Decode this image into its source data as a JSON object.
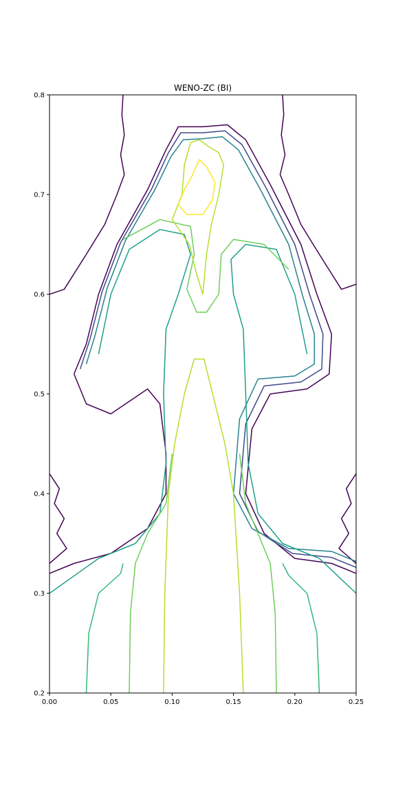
{
  "chart_data": {
    "type": "contour",
    "title": "WENO-ZC (BI)",
    "xlabel": "",
    "ylabel": "",
    "xlim": [
      0.0,
      0.25
    ],
    "ylim": [
      0.2,
      0.8
    ],
    "x_ticks": [
      0.0,
      0.05,
      0.1,
      0.15,
      0.2,
      0.25
    ],
    "x_tick_labels": [
      "0.00",
      "0.05",
      "0.10",
      "0.15",
      "0.20",
      "0.25"
    ],
    "y_ticks": [
      0.2,
      0.3,
      0.4,
      0.5,
      0.6,
      0.7,
      0.8
    ],
    "y_tick_labels": [
      "0.2",
      "0.3",
      "0.4",
      "0.5",
      "0.6",
      "0.7",
      "0.8"
    ],
    "grid": false,
    "legend": "none",
    "colormap": "viridis",
    "levels": [
      {
        "color": "#440154"
      },
      {
        "color": "#482878"
      },
      {
        "color": "#3e4989"
      },
      {
        "color": "#31688e"
      },
      {
        "color": "#26828e"
      },
      {
        "color": "#1f9e89"
      },
      {
        "color": "#35b779"
      },
      {
        "color": "#6ece58"
      },
      {
        "color": "#b5de2b"
      },
      {
        "color": "#fde725"
      }
    ],
    "contours": [
      {
        "level": 0,
        "points": [
          [
            0.06,
            0.8
          ],
          [
            0.059,
            0.78
          ],
          [
            0.061,
            0.76
          ],
          [
            0.058,
            0.74
          ],
          [
            0.061,
            0.72
          ],
          [
            0.055,
            0.7
          ],
          [
            0.045,
            0.67
          ],
          [
            0.03,
            0.64
          ],
          [
            0.012,
            0.605
          ],
          [
            0.0,
            0.6
          ]
        ]
      },
      {
        "level": 0,
        "points": [
          [
            0.19,
            0.8
          ],
          [
            0.191,
            0.78
          ],
          [
            0.189,
            0.76
          ],
          [
            0.192,
            0.74
          ],
          [
            0.188,
            0.72
          ],
          [
            0.195,
            0.7
          ],
          [
            0.205,
            0.67
          ],
          [
            0.22,
            0.64
          ],
          [
            0.238,
            0.605
          ],
          [
            0.25,
            0.61
          ]
        ]
      },
      {
        "level": 0,
        "points": [
          [
            0.0,
            0.42
          ],
          [
            0.008,
            0.405
          ],
          [
            0.004,
            0.39
          ],
          [
            0.012,
            0.375
          ],
          [
            0.006,
            0.36
          ],
          [
            0.014,
            0.345
          ],
          [
            0.0,
            0.33
          ]
        ]
      },
      {
        "level": 0,
        "points": [
          [
            0.25,
            0.42
          ],
          [
            0.242,
            0.405
          ],
          [
            0.246,
            0.39
          ],
          [
            0.238,
            0.375
          ],
          [
            0.244,
            0.36
          ],
          [
            0.236,
            0.345
          ],
          [
            0.25,
            0.33
          ]
        ]
      },
      {
        "level": 0,
        "points": [
          [
            0.02,
            0.52
          ],
          [
            0.03,
            0.55
          ],
          [
            0.04,
            0.6
          ],
          [
            0.055,
            0.65
          ],
          [
            0.08,
            0.705
          ],
          [
            0.095,
            0.745
          ],
          [
            0.105,
            0.768
          ],
          [
            0.125,
            0.768
          ],
          [
            0.145,
            0.77
          ],
          [
            0.16,
            0.755
          ],
          [
            0.18,
            0.71
          ],
          [
            0.205,
            0.65
          ],
          [
            0.218,
            0.6
          ],
          [
            0.23,
            0.56
          ],
          [
            0.228,
            0.52
          ],
          [
            0.21,
            0.505
          ],
          [
            0.18,
            0.5
          ],
          [
            0.165,
            0.465
          ],
          [
            0.16,
            0.4
          ],
          [
            0.175,
            0.36
          ],
          [
            0.2,
            0.335
          ],
          [
            0.23,
            0.33
          ],
          [
            0.25,
            0.32
          ]
        ]
      },
      {
        "level": 0,
        "points": [
          [
            0.02,
            0.52
          ],
          [
            0.03,
            0.49
          ],
          [
            0.05,
            0.48
          ],
          [
            0.08,
            0.505
          ],
          [
            0.09,
            0.49
          ],
          [
            0.095,
            0.44
          ],
          [
            0.095,
            0.4
          ],
          [
            0.08,
            0.365
          ],
          [
            0.05,
            0.34
          ],
          [
            0.02,
            0.33
          ],
          [
            0.0,
            0.32
          ]
        ]
      },
      {
        "level": 2,
        "points": [
          [
            0.025,
            0.525
          ],
          [
            0.033,
            0.555
          ],
          [
            0.043,
            0.603
          ],
          [
            0.058,
            0.652
          ],
          [
            0.083,
            0.705
          ],
          [
            0.097,
            0.742
          ],
          [
            0.107,
            0.762
          ],
          [
            0.125,
            0.762
          ],
          [
            0.143,
            0.764
          ],
          [
            0.157,
            0.75
          ],
          [
            0.176,
            0.708
          ],
          [
            0.2,
            0.65
          ],
          [
            0.212,
            0.6
          ],
          [
            0.223,
            0.56
          ],
          [
            0.222,
            0.525
          ],
          [
            0.205,
            0.512
          ],
          [
            0.175,
            0.508
          ],
          [
            0.16,
            0.47
          ],
          [
            0.155,
            0.4
          ],
          [
            0.17,
            0.362
          ],
          [
            0.198,
            0.34
          ],
          [
            0.23,
            0.336
          ],
          [
            0.25,
            0.326
          ]
        ]
      },
      {
        "level": 4,
        "points": [
          [
            0.03,
            0.53
          ],
          [
            0.037,
            0.558
          ],
          [
            0.047,
            0.606
          ],
          [
            0.062,
            0.654
          ],
          [
            0.086,
            0.705
          ],
          [
            0.099,
            0.738
          ],
          [
            0.109,
            0.755
          ],
          [
            0.125,
            0.756
          ],
          [
            0.141,
            0.758
          ],
          [
            0.154,
            0.745
          ],
          [
            0.172,
            0.705
          ],
          [
            0.195,
            0.65
          ],
          [
            0.206,
            0.6
          ],
          [
            0.216,
            0.56
          ],
          [
            0.216,
            0.53
          ],
          [
            0.2,
            0.518
          ],
          [
            0.17,
            0.515
          ],
          [
            0.155,
            0.475
          ],
          [
            0.15,
            0.4
          ],
          [
            0.165,
            0.365
          ],
          [
            0.195,
            0.345
          ],
          [
            0.23,
            0.342
          ],
          [
            0.25,
            0.332
          ]
        ]
      },
      {
        "level": 5,
        "points": [
          [
            0.04,
            0.54
          ],
          [
            0.05,
            0.6
          ],
          [
            0.065,
            0.645
          ],
          [
            0.09,
            0.665
          ],
          [
            0.11,
            0.66
          ],
          [
            0.115,
            0.64
          ],
          [
            0.105,
            0.6
          ],
          [
            0.095,
            0.565
          ],
          [
            0.093,
            0.5
          ],
          [
            0.095,
            0.43
          ],
          [
            0.09,
            0.38
          ],
          [
            0.07,
            0.35
          ],
          [
            0.04,
            0.335
          ],
          [
            0.0,
            0.3
          ]
        ]
      },
      {
        "level": 5,
        "points": [
          [
            0.21,
            0.54
          ],
          [
            0.2,
            0.6
          ],
          [
            0.185,
            0.645
          ],
          [
            0.16,
            0.65
          ],
          [
            0.148,
            0.635
          ],
          [
            0.15,
            0.6
          ],
          [
            0.158,
            0.565
          ],
          [
            0.16,
            0.5
          ],
          [
            0.162,
            0.43
          ],
          [
            0.17,
            0.38
          ],
          [
            0.19,
            0.35
          ],
          [
            0.22,
            0.335
          ],
          [
            0.25,
            0.3
          ]
        ]
      },
      {
        "level": 6,
        "points": [
          [
            0.03,
            0.2
          ],
          [
            0.032,
            0.26
          ],
          [
            0.04,
            0.3
          ],
          [
            0.058,
            0.32
          ],
          [
            0.06,
            0.33
          ]
        ]
      },
      {
        "level": 6,
        "points": [
          [
            0.22,
            0.2
          ],
          [
            0.218,
            0.26
          ],
          [
            0.21,
            0.3
          ],
          [
            0.195,
            0.318
          ],
          [
            0.19,
            0.33
          ]
        ]
      },
      {
        "level": 7,
        "points": [
          [
            0.065,
            0.2
          ],
          [
            0.066,
            0.28
          ],
          [
            0.07,
            0.33
          ],
          [
            0.08,
            0.36
          ],
          [
            0.095,
            0.39
          ],
          [
            0.1,
            0.44
          ]
        ]
      },
      {
        "level": 7,
        "points": [
          [
            0.185,
            0.2
          ],
          [
            0.184,
            0.28
          ],
          [
            0.18,
            0.33
          ],
          [
            0.17,
            0.36
          ],
          [
            0.16,
            0.39
          ],
          [
            0.155,
            0.44
          ]
        ]
      },
      {
        "level": 7,
        "points": [
          [
            0.06,
            0.655
          ],
          [
            0.09,
            0.675
          ],
          [
            0.115,
            0.668
          ],
          [
            0.118,
            0.64
          ],
          [
            0.112,
            0.605
          ],
          [
            0.12,
            0.582
          ],
          [
            0.128,
            0.582
          ],
          [
            0.138,
            0.6
          ],
          [
            0.14,
            0.64
          ],
          [
            0.15,
            0.655
          ],
          [
            0.175,
            0.65
          ],
          [
            0.195,
            0.625
          ]
        ]
      },
      {
        "level": 8,
        "points": [
          [
            0.093,
            0.2
          ],
          [
            0.094,
            0.3
          ],
          [
            0.097,
            0.4
          ],
          [
            0.102,
            0.45
          ],
          [
            0.11,
            0.5
          ],
          [
            0.118,
            0.535
          ],
          [
            0.126,
            0.535
          ],
          [
            0.133,
            0.5
          ],
          [
            0.143,
            0.45
          ],
          [
            0.15,
            0.4
          ],
          [
            0.155,
            0.3
          ],
          [
            0.158,
            0.2
          ]
        ]
      },
      {
        "level": 8,
        "points": [
          [
            0.1,
            0.675
          ],
          [
            0.108,
            0.7
          ],
          [
            0.11,
            0.73
          ],
          [
            0.115,
            0.752
          ],
          [
            0.122,
            0.755
          ],
          [
            0.13,
            0.748
          ],
          [
            0.138,
            0.742
          ],
          [
            0.142,
            0.73
          ],
          [
            0.138,
            0.7
          ],
          [
            0.132,
            0.67
          ],
          [
            0.128,
            0.64
          ],
          [
            0.125,
            0.6
          ],
          [
            0.12,
            0.62
          ],
          [
            0.114,
            0.65
          ],
          [
            0.1,
            0.675
          ]
        ]
      },
      {
        "level": 9,
        "points": [
          [
            0.105,
            0.69
          ],
          [
            0.11,
            0.705
          ],
          [
            0.116,
            0.718
          ],
          [
            0.122,
            0.735
          ],
          [
            0.128,
            0.728
          ],
          [
            0.135,
            0.712
          ],
          [
            0.133,
            0.695
          ],
          [
            0.125,
            0.68
          ],
          [
            0.112,
            0.68
          ],
          [
            0.105,
            0.69
          ]
        ]
      }
    ]
  }
}
